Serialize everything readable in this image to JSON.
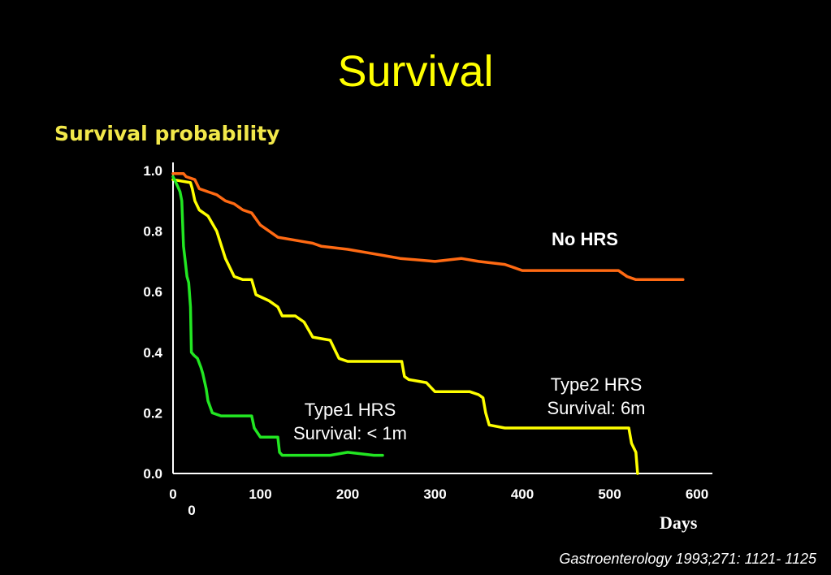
{
  "slide": {
    "title": "Survival",
    "citation": "Gastroenterology 1993;271: 1121- 1125"
  },
  "colors": {
    "background": "#000000",
    "title": "#ffff00",
    "no_hrs": "#ff6a13",
    "type2_hrs": "#ffff00",
    "type1_hrs": "#22e622",
    "axis": "#ffffff"
  },
  "chart_data": {
    "type": "line",
    "title": "",
    "ylabel": "Survival probability",
    "xlabel": "Days",
    "xlim": [
      0,
      600
    ],
    "ylim": [
      0,
      1.0
    ],
    "x_ticks": [
      "0",
      "100",
      "200",
      "300",
      "400",
      "500",
      "600"
    ],
    "x_extra_tick": "0",
    "y_ticks": [
      "0.0",
      "0.2",
      "0.4",
      "0.6",
      "0.8",
      "1.0"
    ],
    "grid": false,
    "series": [
      {
        "name": "No HRS",
        "label_lines": [
          "No HRS"
        ],
        "color": "#ff6a13",
        "points": [
          [
            0,
            0.99
          ],
          [
            12,
            0.99
          ],
          [
            15,
            0.98
          ],
          [
            25,
            0.97
          ],
          [
            30,
            0.94
          ],
          [
            40,
            0.93
          ],
          [
            50,
            0.92
          ],
          [
            60,
            0.9
          ],
          [
            70,
            0.89
          ],
          [
            80,
            0.87
          ],
          [
            90,
            0.86
          ],
          [
            100,
            0.82
          ],
          [
            110,
            0.8
          ],
          [
            120,
            0.78
          ],
          [
            140,
            0.77
          ],
          [
            160,
            0.76
          ],
          [
            170,
            0.75
          ],
          [
            200,
            0.74
          ],
          [
            220,
            0.73
          ],
          [
            240,
            0.72
          ],
          [
            260,
            0.71
          ],
          [
            300,
            0.7
          ],
          [
            330,
            0.71
          ],
          [
            350,
            0.7
          ],
          [
            380,
            0.69
          ],
          [
            400,
            0.67
          ],
          [
            450,
            0.67
          ],
          [
            500,
            0.67
          ],
          [
            510,
            0.67
          ],
          [
            520,
            0.65
          ],
          [
            530,
            0.64
          ],
          [
            560,
            0.64
          ],
          [
            575,
            0.64
          ],
          [
            584,
            0.64
          ]
        ]
      },
      {
        "name": "Type2 HRS",
        "label_lines": [
          "Type2 HRS",
          "Survival:  6m"
        ],
        "color": "#ffff00",
        "points": [
          [
            0,
            0.97
          ],
          [
            20,
            0.96
          ],
          [
            22,
            0.94
          ],
          [
            25,
            0.9
          ],
          [
            30,
            0.87
          ],
          [
            40,
            0.85
          ],
          [
            50,
            0.8
          ],
          [
            60,
            0.71
          ],
          [
            70,
            0.65
          ],
          [
            80,
            0.64
          ],
          [
            90,
            0.64
          ],
          [
            95,
            0.59
          ],
          [
            110,
            0.57
          ],
          [
            120,
            0.55
          ],
          [
            125,
            0.52
          ],
          [
            140,
            0.52
          ],
          [
            150,
            0.5
          ],
          [
            160,
            0.45
          ],
          [
            180,
            0.44
          ],
          [
            185,
            0.41
          ],
          [
            190,
            0.38
          ],
          [
            200,
            0.37
          ],
          [
            230,
            0.37
          ],
          [
            262,
            0.37
          ],
          [
            265,
            0.32
          ],
          [
            270,
            0.31
          ],
          [
            290,
            0.3
          ],
          [
            300,
            0.27
          ],
          [
            340,
            0.27
          ],
          [
            350,
            0.26
          ],
          [
            355,
            0.25
          ],
          [
            358,
            0.2
          ],
          [
            362,
            0.16
          ],
          [
            380,
            0.15
          ],
          [
            400,
            0.15
          ],
          [
            460,
            0.15
          ],
          [
            510,
            0.15
          ],
          [
            522,
            0.15
          ],
          [
            525,
            0.1
          ],
          [
            530,
            0.07
          ],
          [
            532,
            0.0
          ]
        ]
      },
      {
        "name": "Type1 HRS",
        "label_lines": [
          "Type1 HRS",
          "Survival: < 1m"
        ],
        "color": "#22e622",
        "points": [
          [
            0,
            0.98
          ],
          [
            5,
            0.95
          ],
          [
            8,
            0.93
          ],
          [
            10,
            0.9
          ],
          [
            12,
            0.75
          ],
          [
            14,
            0.7
          ],
          [
            16,
            0.65
          ],
          [
            18,
            0.63
          ],
          [
            20,
            0.55
          ],
          [
            21,
            0.4
          ],
          [
            24,
            0.39
          ],
          [
            28,
            0.38
          ],
          [
            32,
            0.35
          ],
          [
            34,
            0.33
          ],
          [
            38,
            0.28
          ],
          [
            40,
            0.24
          ],
          [
            45,
            0.2
          ],
          [
            55,
            0.19
          ],
          [
            70,
            0.19
          ],
          [
            90,
            0.19
          ],
          [
            93,
            0.15
          ],
          [
            100,
            0.12
          ],
          [
            110,
            0.12
          ],
          [
            120,
            0.12
          ],
          [
            122,
            0.07
          ],
          [
            125,
            0.06
          ],
          [
            150,
            0.06
          ],
          [
            170,
            0.06
          ],
          [
            180,
            0.06
          ],
          [
            200,
            0.07
          ],
          [
            230,
            0.06
          ],
          [
            240,
            0.06
          ]
        ]
      }
    ]
  }
}
